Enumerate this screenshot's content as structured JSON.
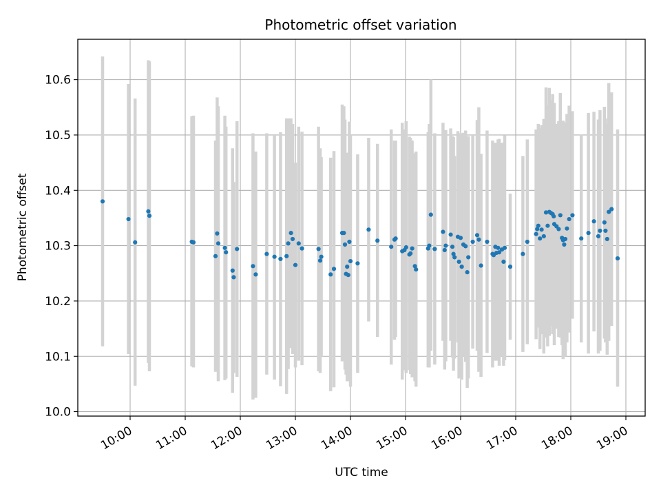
{
  "chart_data": {
    "type": "scatter",
    "title": "Photometric offset variation",
    "xlabel": "UTC time",
    "ylabel": "Photometric offset",
    "x_unit": "hours UTC",
    "xlim": [
      9.05,
      19.35
    ],
    "ylim": [
      9.992,
      10.673
    ],
    "xticks": [
      10,
      11,
      12,
      13,
      14,
      15,
      16,
      17,
      18,
      19
    ],
    "xtick_labels": [
      "10:00",
      "11:00",
      "12:00",
      "13:00",
      "14:00",
      "15:00",
      "16:00",
      "17:00",
      "18:00",
      "19:00"
    ],
    "yticks": [
      10.0,
      10.1,
      10.2,
      10.3,
      10.4,
      10.5,
      10.6
    ],
    "ytick_labels": [
      "10.0",
      "10.1",
      "10.2",
      "10.3",
      "10.4",
      "10.5",
      "10.6"
    ],
    "grid": true,
    "colors": {
      "point": "#1f77b4",
      "errorbar": "#d3d3d3",
      "grid": "#b0b0b0"
    },
    "series": [
      {
        "points": [
          {
            "x": 9.5,
            "y": 10.38,
            "lo": 10.118,
            "hi": 10.642
          },
          {
            "x": 9.97,
            "y": 10.348,
            "lo": 10.104,
            "hi": 10.592
          },
          {
            "x": 10.09,
            "y": 10.306,
            "lo": 10.047,
            "hi": 10.566
          },
          {
            "x": 10.33,
            "y": 10.362,
            "lo": 10.088,
            "hi": 10.635
          },
          {
            "x": 10.35,
            "y": 10.354,
            "lo": 10.073,
            "hi": 10.633
          },
          {
            "x": 11.12,
            "y": 10.307,
            "lo": 10.082,
            "hi": 10.534
          },
          {
            "x": 11.15,
            "y": 10.306,
            "lo": 10.08,
            "hi": 10.535
          },
          {
            "x": 11.55,
            "y": 10.281,
            "lo": 10.072,
            "hi": 10.49
          },
          {
            "x": 11.58,
            "y": 10.322,
            "lo": 10.075,
            "hi": 10.568
          },
          {
            "x": 11.6,
            "y": 10.304,
            "lo": 10.055,
            "hi": 10.552
          },
          {
            "x": 11.72,
            "y": 10.296,
            "lo": 10.057,
            "hi": 10.535
          },
          {
            "x": 11.74,
            "y": 10.288,
            "lo": 10.06,
            "hi": 10.515
          },
          {
            "x": 11.86,
            "y": 10.255,
            "lo": 10.034,
            "hi": 10.476
          },
          {
            "x": 11.88,
            "y": 10.243,
            "lo": 10.07,
            "hi": 10.415
          },
          {
            "x": 11.94,
            "y": 10.294,
            "lo": 10.063,
            "hi": 10.525
          },
          {
            "x": 12.23,
            "y": 10.263,
            "lo": 10.022,
            "hi": 10.503
          },
          {
            "x": 12.28,
            "y": 10.248,
            "lo": 10.025,
            "hi": 10.47
          },
          {
            "x": 12.48,
            "y": 10.285,
            "lo": 10.067,
            "hi": 10.503
          },
          {
            "x": 12.62,
            "y": 10.28,
            "lo": 10.058,
            "hi": 10.5
          },
          {
            "x": 12.73,
            "y": 10.276,
            "lo": 10.046,
            "hi": 10.505
          },
          {
            "x": 12.84,
            "y": 10.281,
            "lo": 10.032,
            "hi": 10.53
          },
          {
            "x": 12.87,
            "y": 10.304,
            "lo": 10.077,
            "hi": 10.53
          },
          {
            "x": 12.92,
            "y": 10.323,
            "lo": 10.115,
            "hi": 10.53
          },
          {
            "x": 12.95,
            "y": 10.312,
            "lo": 10.104,
            "hi": 10.52
          },
          {
            "x": 13.0,
            "y": 10.265,
            "lo": 10.08,
            "hi": 10.45
          },
          {
            "x": 13.06,
            "y": 10.304,
            "lo": 10.092,
            "hi": 10.515
          },
          {
            "x": 13.12,
            "y": 10.295,
            "lo": 10.084,
            "hi": 10.506
          },
          {
            "x": 13.42,
            "y": 10.294,
            "lo": 10.073,
            "hi": 10.515
          },
          {
            "x": 13.45,
            "y": 10.273,
            "lo": 10.07,
            "hi": 10.476
          },
          {
            "x": 13.47,
            "y": 10.28,
            "lo": 10.1,
            "hi": 10.46
          },
          {
            "x": 13.64,
            "y": 10.248,
            "lo": 10.037,
            "hi": 10.459
          },
          {
            "x": 13.7,
            "y": 10.258,
            "lo": 10.044,
            "hi": 10.471
          },
          {
            "x": 13.85,
            "y": 10.323,
            "lo": 10.091,
            "hi": 10.555
          },
          {
            "x": 13.88,
            "y": 10.323,
            "lo": 10.093,
            "hi": 10.552
          },
          {
            "x": 13.9,
            "y": 10.302,
            "lo": 10.076,
            "hi": 10.528
          },
          {
            "x": 13.92,
            "y": 10.249,
            "lo": 10.067,
            "hi": 10.432
          },
          {
            "x": 13.94,
            "y": 10.262,
            "lo": 10.055,
            "hi": 10.468
          },
          {
            "x": 13.96,
            "y": 10.247,
            "lo": 10.055,
            "hi": 10.44
          },
          {
            "x": 13.98,
            "y": 10.307,
            "lo": 10.09,
            "hi": 10.524
          },
          {
            "x": 14.0,
            "y": 10.272,
            "lo": 10.045,
            "hi": 10.5
          },
          {
            "x": 14.13,
            "y": 10.268,
            "lo": 10.07,
            "hi": 10.465
          },
          {
            "x": 14.33,
            "y": 10.329,
            "lo": 10.163,
            "hi": 10.495
          },
          {
            "x": 14.49,
            "y": 10.309,
            "lo": 10.135,
            "hi": 10.484
          },
          {
            "x": 14.74,
            "y": 10.298,
            "lo": 10.085,
            "hi": 10.51
          },
          {
            "x": 14.8,
            "y": 10.311,
            "lo": 10.13,
            "hi": 10.49
          },
          {
            "x": 14.82,
            "y": 10.313,
            "lo": 10.135,
            "hi": 10.49
          },
          {
            "x": 14.94,
            "y": 10.29,
            "lo": 10.058,
            "hi": 10.522
          },
          {
            "x": 14.98,
            "y": 10.292,
            "lo": 10.075,
            "hi": 10.51
          },
          {
            "x": 15.01,
            "y": 10.297,
            "lo": 10.07,
            "hi": 10.525
          },
          {
            "x": 15.07,
            "y": 10.284,
            "lo": 10.075,
            "hi": 10.497
          },
          {
            "x": 15.09,
            "y": 10.286,
            "lo": 10.068,
            "hi": 10.495
          },
          {
            "x": 15.12,
            "y": 10.295,
            "lo": 10.062,
            "hi": 10.49
          },
          {
            "x": 15.17,
            "y": 10.263,
            "lo": 10.055,
            "hi": 10.467
          },
          {
            "x": 15.19,
            "y": 10.257,
            "lo": 10.045,
            "hi": 10.47
          },
          {
            "x": 15.41,
            "y": 10.295,
            "lo": 10.08,
            "hi": 10.505
          },
          {
            "x": 15.43,
            "y": 10.3,
            "lo": 10.08,
            "hi": 10.52
          },
          {
            "x": 15.46,
            "y": 10.356,
            "lo": 10.11,
            "hi": 10.6
          },
          {
            "x": 15.53,
            "y": 10.294,
            "lo": 10.085,
            "hi": 10.503
          },
          {
            "x": 15.68,
            "y": 10.325,
            "lo": 10.128,
            "hi": 10.522
          },
          {
            "x": 15.71,
            "y": 10.292,
            "lo": 10.076,
            "hi": 10.508
          },
          {
            "x": 15.73,
            "y": 10.3,
            "lo": 10.091,
            "hi": 10.509
          },
          {
            "x": 15.82,
            "y": 10.32,
            "lo": 10.128,
            "hi": 10.512
          },
          {
            "x": 15.85,
            "y": 10.298,
            "lo": 10.098,
            "hi": 10.498
          },
          {
            "x": 15.87,
            "y": 10.285,
            "lo": 10.074,
            "hi": 10.496
          },
          {
            "x": 15.89,
            "y": 10.279,
            "lo": 10.096,
            "hi": 10.462
          },
          {
            "x": 15.95,
            "y": 10.316,
            "lo": 10.125,
            "hi": 10.507
          },
          {
            "x": 15.97,
            "y": 10.271,
            "lo": 10.06,
            "hi": 10.482
          },
          {
            "x": 16.0,
            "y": 10.314,
            "lo": 10.125,
            "hi": 10.503
          },
          {
            "x": 16.02,
            "y": 10.262,
            "lo": 10.058,
            "hi": 10.466
          },
          {
            "x": 16.05,
            "y": 10.302,
            "lo": 10.1,
            "hi": 10.504
          },
          {
            "x": 16.09,
            "y": 10.299,
            "lo": 10.09,
            "hi": 10.508
          },
          {
            "x": 16.12,
            "y": 10.252,
            "lo": 10.043,
            "hi": 10.461
          },
          {
            "x": 16.14,
            "y": 10.279,
            "lo": 10.06,
            "hi": 10.498
          },
          {
            "x": 16.22,
            "y": 10.307,
            "lo": 10.114,
            "hi": 10.5
          },
          {
            "x": 16.3,
            "y": 10.319,
            "lo": 10.11,
            "hi": 10.527
          },
          {
            "x": 16.33,
            "y": 10.311,
            "lo": 10.072,
            "hi": 10.55
          },
          {
            "x": 16.37,
            "y": 10.264,
            "lo": 10.063,
            "hi": 10.466
          },
          {
            "x": 16.48,
            "y": 10.307,
            "lo": 10.106,
            "hi": 10.508
          },
          {
            "x": 16.58,
            "y": 10.285,
            "lo": 10.08,
            "hi": 10.49
          },
          {
            "x": 16.6,
            "y": 10.283,
            "lo": 10.092,
            "hi": 10.474
          },
          {
            "x": 16.63,
            "y": 10.298,
            "lo": 10.11,
            "hi": 10.486
          },
          {
            "x": 16.65,
            "y": 10.287,
            "lo": 10.092,
            "hi": 10.482
          },
          {
            "x": 16.68,
            "y": 10.296,
            "lo": 10.1,
            "hi": 10.492
          },
          {
            "x": 16.7,
            "y": 10.288,
            "lo": 10.083,
            "hi": 10.493
          },
          {
            "x": 16.75,
            "y": 10.293,
            "lo": 10.1,
            "hi": 10.486
          },
          {
            "x": 16.78,
            "y": 10.271,
            "lo": 10.083,
            "hi": 10.459
          },
          {
            "x": 16.8,
            "y": 10.296,
            "lo": 10.093,
            "hi": 10.499
          },
          {
            "x": 16.9,
            "y": 10.262,
            "lo": 10.13,
            "hi": 10.394
          },
          {
            "x": 17.13,
            "y": 10.285,
            "lo": 10.108,
            "hi": 10.462
          },
          {
            "x": 17.21,
            "y": 10.307,
            "lo": 10.122,
            "hi": 10.492
          },
          {
            "x": 17.37,
            "y": 10.321,
            "lo": 10.131,
            "hi": 10.51
          },
          {
            "x": 17.39,
            "y": 10.33,
            "lo": 10.155,
            "hi": 10.505
          },
          {
            "x": 17.41,
            "y": 10.336,
            "lo": 10.152,
            "hi": 10.52
          },
          {
            "x": 17.44,
            "y": 10.313,
            "lo": 10.113,
            "hi": 10.512
          },
          {
            "x": 17.47,
            "y": 10.329,
            "lo": 10.14,
            "hi": 10.518
          },
          {
            "x": 17.51,
            "y": 10.317,
            "lo": 10.105,
            "hi": 10.529
          },
          {
            "x": 17.55,
            "y": 10.36,
            "lo": 10.134,
            "hi": 10.586
          },
          {
            "x": 17.58,
            "y": 10.336,
            "lo": 10.118,
            "hi": 10.554
          },
          {
            "x": 17.61,
            "y": 10.361,
            "lo": 10.137,
            "hi": 10.585
          },
          {
            "x": 17.64,
            "y": 10.359,
            "lo": 10.155,
            "hi": 10.563
          },
          {
            "x": 17.67,
            "y": 10.357,
            "lo": 10.14,
            "hi": 10.574
          },
          {
            "x": 17.69,
            "y": 10.353,
            "lo": 10.17,
            "hi": 10.536
          },
          {
            "x": 17.7,
            "y": 10.339,
            "lo": 10.12,
            "hi": 10.558
          },
          {
            "x": 17.74,
            "y": 10.335,
            "lo": 10.15,
            "hi": 10.52
          },
          {
            "x": 17.78,
            "y": 10.33,
            "lo": 10.135,
            "hi": 10.525
          },
          {
            "x": 17.81,
            "y": 10.355,
            "lo": 10.134,
            "hi": 10.576
          },
          {
            "x": 17.84,
            "y": 10.314,
            "lo": 10.12,
            "hi": 10.508
          },
          {
            "x": 17.86,
            "y": 10.31,
            "lo": 10.095,
            "hi": 10.526
          },
          {
            "x": 17.88,
            "y": 10.302,
            "lo": 10.125,
            "hi": 10.48
          },
          {
            "x": 17.9,
            "y": 10.312,
            "lo": 10.1,
            "hi": 10.523
          },
          {
            "x": 17.93,
            "y": 10.331,
            "lo": 10.125,
            "hi": 10.538
          },
          {
            "x": 17.97,
            "y": 10.348,
            "lo": 10.143,
            "hi": 10.553
          },
          {
            "x": 18.03,
            "y": 10.355,
            "lo": 10.168,
            "hi": 10.543
          },
          {
            "x": 18.19,
            "y": 10.313,
            "lo": 10.125,
            "hi": 10.501
          },
          {
            "x": 18.32,
            "y": 10.323,
            "lo": 10.105,
            "hi": 10.54
          },
          {
            "x": 18.42,
            "y": 10.344,
            "lo": 10.145,
            "hi": 10.542
          },
          {
            "x": 18.5,
            "y": 10.317,
            "lo": 10.105,
            "hi": 10.528
          },
          {
            "x": 18.53,
            "y": 10.327,
            "lo": 10.11,
            "hi": 10.545
          },
          {
            "x": 18.61,
            "y": 10.342,
            "lo": 10.132,
            "hi": 10.551
          },
          {
            "x": 18.63,
            "y": 10.327,
            "lo": 10.125,
            "hi": 10.53
          },
          {
            "x": 18.66,
            "y": 10.312,
            "lo": 10.103,
            "hi": 10.52
          },
          {
            "x": 18.69,
            "y": 10.361,
            "lo": 10.128,
            "hi": 10.594
          },
          {
            "x": 18.74,
            "y": 10.366,
            "lo": 10.155,
            "hi": 10.577
          },
          {
            "x": 18.85,
            "y": 10.277,
            "lo": 10.045,
            "hi": 10.51
          }
        ]
      }
    ]
  }
}
